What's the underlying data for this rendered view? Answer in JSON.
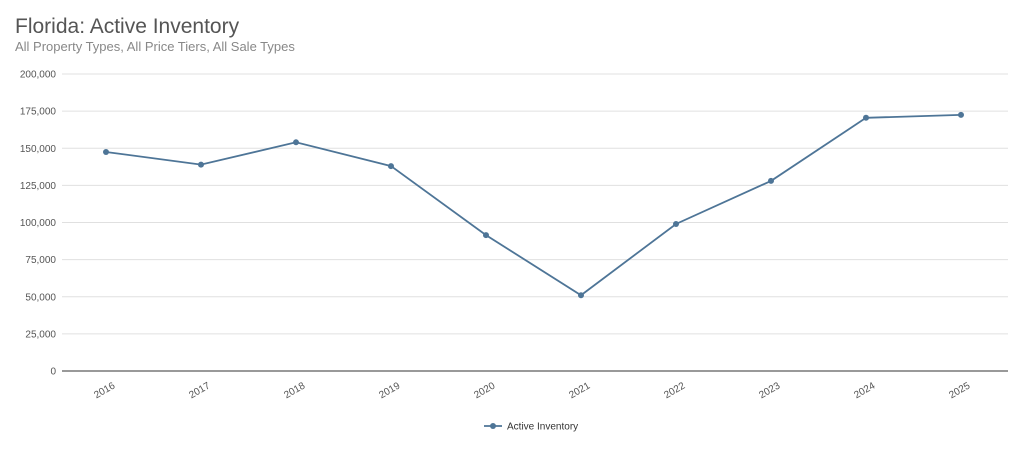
{
  "chart_data": {
    "type": "line",
    "title": "Florida: Active Inventory",
    "subtitle": "All Property Types, All Price Tiers, All Sale Types",
    "x": [
      "2016",
      "2017",
      "2018",
      "2019",
      "2020",
      "2021",
      "2022",
      "2023",
      "2024",
      "2025"
    ],
    "series": [
      {
        "name": "Active Inventory",
        "color": "#4e7597",
        "values": [
          147500,
          139000,
          154000,
          138000,
          91500,
          51000,
          99000,
          128000,
          170500,
          172500
        ]
      }
    ],
    "ylim": [
      0,
      200000
    ],
    "yticks": [
      0,
      25000,
      50000,
      75000,
      100000,
      125000,
      150000,
      175000,
      200000
    ],
    "ytick_labels": [
      "0",
      "25,000",
      "50,000",
      "75,000",
      "100,000",
      "125,000",
      "150,000",
      "175,000",
      "200,000"
    ],
    "grid": true,
    "legend_position": "bottom-center"
  }
}
